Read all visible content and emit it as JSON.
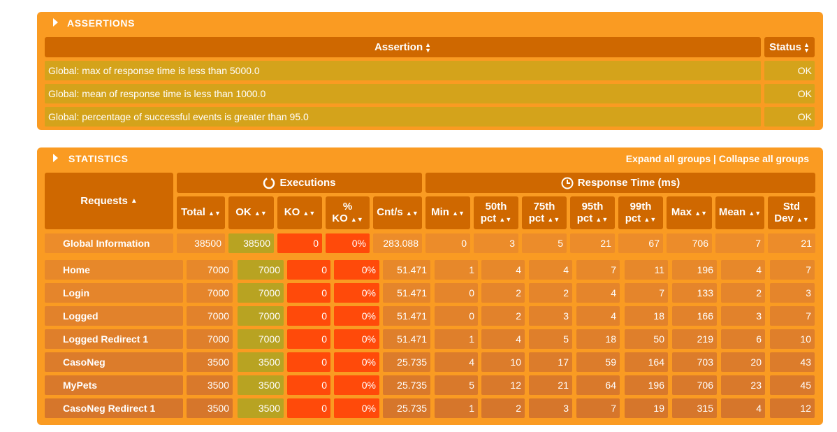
{
  "assertions": {
    "title": "ASSERTIONS",
    "header_assertion": "Assertion",
    "header_status": "Status",
    "rows": [
      {
        "text": "Global: max of response time is less than 5000.0",
        "status": "OK"
      },
      {
        "text": "Global: mean of response time is less than 1000.0",
        "status": "OK"
      },
      {
        "text": "Global: percentage of successful events is greater than 95.0",
        "status": "OK"
      }
    ]
  },
  "statistics": {
    "title": "STATISTICS",
    "expand_all": "Expand all groups",
    "separator": "|",
    "collapse_all": "Collapse all groups",
    "requests_header": "Requests",
    "executions_header": "Executions",
    "response_header": "Response Time (ms)",
    "columns": [
      "Total",
      "OK",
      "KO",
      "% KO",
      "Cnt/s",
      "Min",
      "50th pct",
      "75th pct",
      "95th pct",
      "99th pct",
      "Max",
      "Mean",
      "Std Dev"
    ],
    "global": {
      "name": "Global Information",
      "values": [
        "38500",
        "38500",
        "0",
        "0%",
        "283.088",
        "0",
        "3",
        "5",
        "21",
        "67",
        "706",
        "7",
        "21"
      ]
    },
    "rows": [
      {
        "name": "Home",
        "values": [
          "7000",
          "7000",
          "0",
          "0%",
          "51.471",
          "1",
          "4",
          "4",
          "7",
          "11",
          "196",
          "4",
          "7"
        ]
      },
      {
        "name": "Login",
        "values": [
          "7000",
          "7000",
          "0",
          "0%",
          "51.471",
          "0",
          "2",
          "2",
          "4",
          "7",
          "133",
          "2",
          "3"
        ]
      },
      {
        "name": "Logged",
        "values": [
          "7000",
          "7000",
          "0",
          "0%",
          "51.471",
          "0",
          "2",
          "3",
          "4",
          "18",
          "166",
          "3",
          "7"
        ]
      },
      {
        "name": "Logged Redirect 1",
        "values": [
          "7000",
          "7000",
          "0",
          "0%",
          "51.471",
          "1",
          "4",
          "5",
          "18",
          "50",
          "219",
          "6",
          "10"
        ]
      },
      {
        "name": "CasoNeg",
        "values": [
          "3500",
          "3500",
          "0",
          "0%",
          "25.735",
          "4",
          "10",
          "17",
          "59",
          "164",
          "703",
          "20",
          "43"
        ]
      },
      {
        "name": "MyPets",
        "values": [
          "3500",
          "3500",
          "0",
          "0%",
          "25.735",
          "5",
          "12",
          "21",
          "64",
          "196",
          "706",
          "23",
          "45"
        ]
      },
      {
        "name": "CasoNeg Redirect 1",
        "values": [
          "3500",
          "3500",
          "0",
          "0%",
          "25.735",
          "1",
          "2",
          "3",
          "7",
          "19",
          "315",
          "4",
          "12"
        ]
      }
    ]
  },
  "colors": {
    "panel": "#fa9b22",
    "header": "#cf6800",
    "ok_cell": "#b8a322",
    "ko_cell": "#ff4a0a",
    "assert_row": "#d4a31b"
  },
  "icons": [
    "collapse-triangle-icon",
    "sort-arrows-icon",
    "executions-refresh-icon",
    "response-clock-icon"
  ]
}
